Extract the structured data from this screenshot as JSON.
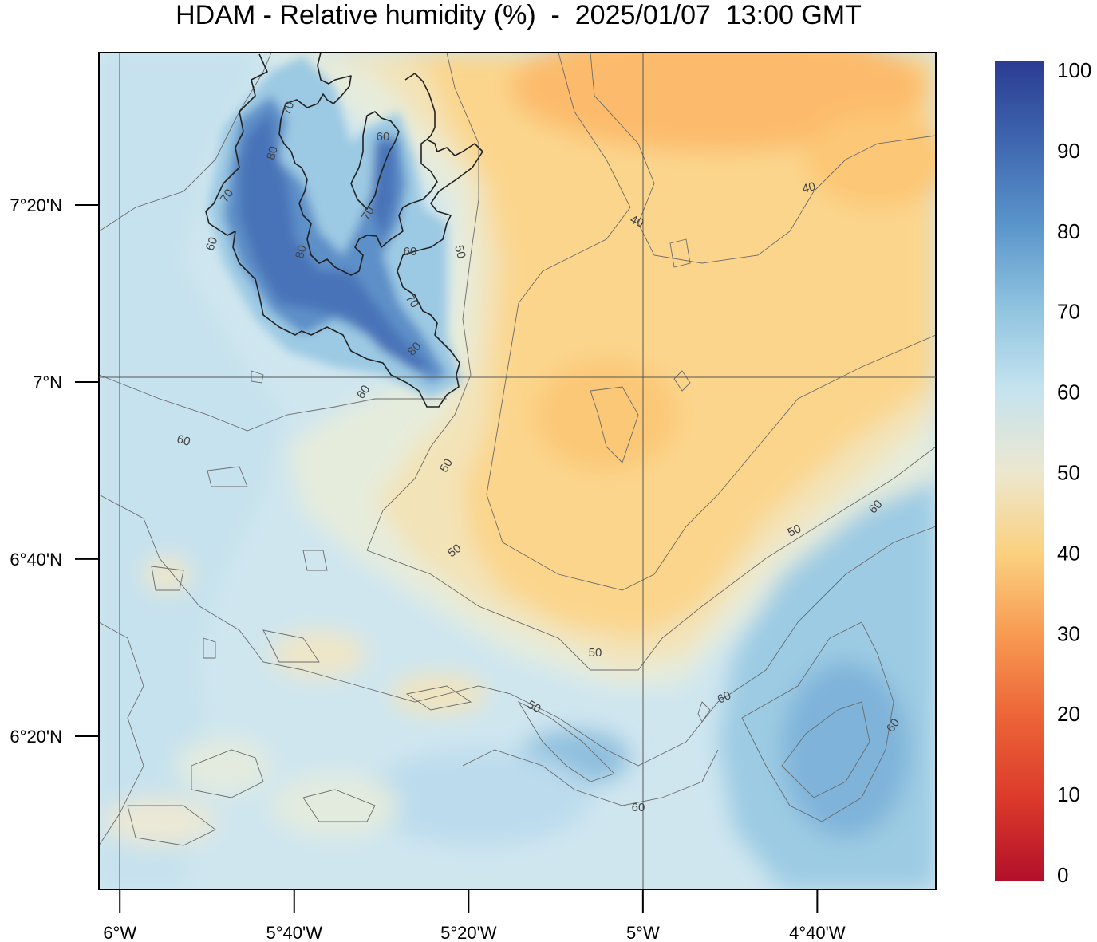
{
  "title": "HDAM - Relative humidity (%)  -  2025/01/07  13:00 GMT",
  "map": {
    "x_ticks": [
      {
        "lon": -6.0,
        "label": "6°W"
      },
      {
        "lon": -5.6667,
        "label": "5°40'W"
      },
      {
        "lon": -5.3333,
        "label": "5°20'W"
      },
      {
        "lon": -5.0,
        "label": "5°W"
      },
      {
        "lon": -4.6667,
        "label": "4°40'W"
      }
    ],
    "y_ticks": [
      {
        "lat": 7.3333,
        "label": "7°20'N"
      },
      {
        "lat": 7.0,
        "label": "7°N"
      },
      {
        "lat": 6.6667,
        "label": "6°40'N"
      },
      {
        "lat": 6.3333,
        "label": "6°20'N"
      }
    ],
    "lon_range": [
      -6.04,
      -4.44
    ],
    "lat_range": [
      6.045,
      7.62
    ],
    "contour_labels": [
      {
        "text": "70"
      },
      {
        "text": "60"
      },
      {
        "text": "80"
      },
      {
        "text": "70"
      },
      {
        "text": "60"
      },
      {
        "text": "80"
      },
      {
        "text": "70"
      },
      {
        "text": "60"
      },
      {
        "text": "50"
      },
      {
        "text": "70"
      },
      {
        "text": "80"
      },
      {
        "text": "60"
      },
      {
        "text": "60"
      },
      {
        "text": "40"
      },
      {
        "text": "40"
      },
      {
        "text": "50"
      },
      {
        "text": "50"
      },
      {
        "text": "50"
      },
      {
        "text": "60"
      },
      {
        "text": "50"
      },
      {
        "text": "50"
      },
      {
        "text": "60"
      },
      {
        "text": "60"
      },
      {
        "text": "60"
      },
      {
        "text": "70"
      }
    ]
  },
  "colorbar": {
    "ticks": [
      "100",
      "90",
      "80",
      "70",
      "60",
      "50",
      "40",
      "30",
      "20",
      "10",
      "0"
    ],
    "stops": [
      {
        "value": 100,
        "color": "#2b3c92"
      },
      {
        "value": 90,
        "color": "#3f67b0"
      },
      {
        "value": 80,
        "color": "#5a95cb"
      },
      {
        "value": 70,
        "color": "#8fc3df"
      },
      {
        "value": 60,
        "color": "#c4e3ef"
      },
      {
        "value": 50,
        "color": "#ece7cf"
      },
      {
        "value": 40,
        "color": "#fbd180"
      },
      {
        "value": 30,
        "color": "#f89a52"
      },
      {
        "value": 20,
        "color": "#ec6437"
      },
      {
        "value": 10,
        "color": "#db3a2b"
      },
      {
        "value": 0,
        "color": "#b2102a"
      }
    ]
  },
  "colors": {
    "humid_blue": "#4a74b8",
    "light_blue": "#b7dcee",
    "pale": "#dcebe7",
    "cream": "#f3e3b4",
    "yellow_orange": "#fbd88e",
    "orange": "#fcbd6c",
    "coast_line": "#222222",
    "contour": "#666666",
    "grid": "#555555"
  }
}
